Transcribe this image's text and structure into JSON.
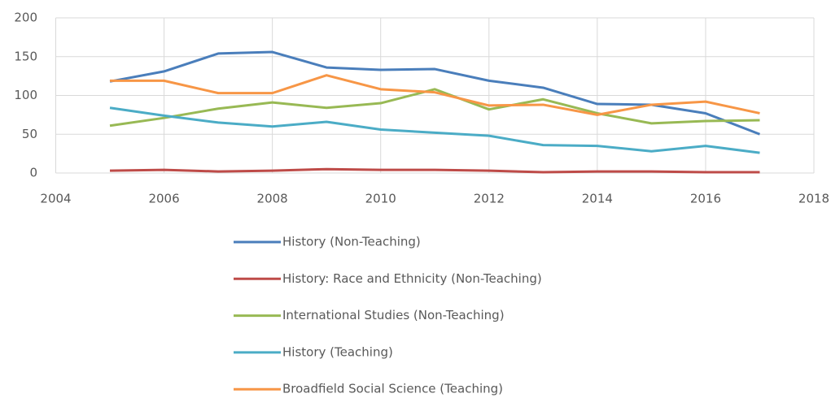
{
  "chart_data": {
    "type": "line",
    "x": [
      2005,
      2006,
      2007,
      2008,
      2009,
      2010,
      2011,
      2012,
      2013,
      2014,
      2015,
      2016,
      2017
    ],
    "series": [
      {
        "name": "History (Non-Teaching)",
        "color": "#4a7ebb",
        "values": [
          118,
          131,
          154,
          156,
          136,
          133,
          134,
          119,
          110,
          89,
          88,
          77,
          50
        ]
      },
      {
        "name": "History: Race and Ethnicity (Non-Teaching)",
        "color": "#be4b48",
        "values": [
          3,
          4,
          2,
          3,
          5,
          4,
          4,
          3,
          1,
          2,
          2,
          1,
          1
        ]
      },
      {
        "name": "International Studies (Non-Teaching)",
        "color": "#98b954",
        "values": [
          61,
          71,
          83,
          91,
          84,
          90,
          108,
          82,
          95,
          77,
          64,
          67,
          68
        ]
      },
      {
        "name": "History (Teaching)",
        "color": "#4bacc6",
        "values": [
          84,
          74,
          65,
          60,
          66,
          56,
          52,
          48,
          36,
          35,
          28,
          35,
          26
        ]
      },
      {
        "name": "Broadfield Social Science (Teaching)",
        "color": "#f79646",
        "values": [
          119,
          119,
          103,
          103,
          126,
          108,
          104,
          87,
          88,
          75,
          88,
          92,
          77
        ]
      }
    ],
    "xlim": [
      2004,
      2018
    ],
    "xticks": [
      2004,
      2006,
      2008,
      2010,
      2012,
      2014,
      2016,
      2018
    ],
    "ylim": [
      0,
      200
    ],
    "yticks": [
      0,
      50,
      100,
      150,
      200
    ],
    "grid": true,
    "legend": "bottom"
  }
}
